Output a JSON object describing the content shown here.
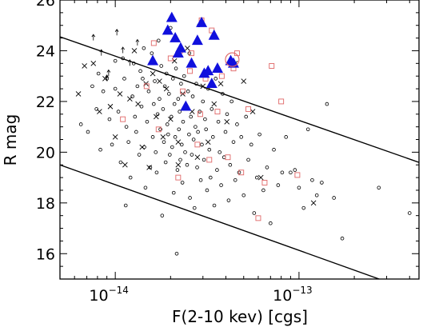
{
  "chart_data": {
    "type": "scatter",
    "title": "",
    "xlabel": "F(2-10 kev) [cgs]",
    "ylabel": "R mag",
    "xscale": "log",
    "xlim": [
      5e-15,
      4.5e-13
    ],
    "ylim": [
      15,
      26
    ],
    "grid": false,
    "legend": "none",
    "x_ticks": [
      {
        "value": 1e-14,
        "base": "10",
        "exponent": "−14"
      },
      {
        "value": 1e-13,
        "base": "10",
        "exponent": "−13"
      }
    ],
    "y_ticks": [
      {
        "value": 16,
        "label": "16"
      },
      {
        "value": 18,
        "label": "18"
      },
      {
        "value": 20,
        "label": "20"
      },
      {
        "value": 22,
        "label": "22"
      },
      {
        "value": 24,
        "label": "24"
      },
      {
        "value": 26,
        "label": "26"
      }
    ],
    "lines": [
      {
        "points": [
          [
            5e-15,
            24.55
          ],
          [
            4.5e-13,
            19.6
          ]
        ]
      },
      {
        "points": [
          [
            5e-15,
            19.5
          ],
          [
            2.73e-13,
            15.0
          ]
        ]
      }
    ],
    "series": [
      {
        "marker": "circle",
        "color": "#000000",
        "points": [
          [
            7.1e-15,
            20.8
          ],
          [
            7.5e-15,
            22.6
          ],
          [
            7.9e-15,
            21.7
          ],
          [
            8.1e-15,
            23.1
          ],
          [
            8.6e-15,
            22.4
          ],
          [
            9e-15,
            22.9
          ],
          [
            9.3e-15,
            21.3
          ],
          [
            9.6e-15,
            20.3
          ],
          [
            1e-14,
            23.6
          ],
          [
            1e-14,
            22.5
          ],
          [
            1.04e-14,
            21.6
          ],
          [
            1.07e-14,
            19.6
          ],
          [
            1.1e-14,
            23.7
          ],
          [
            1.12e-14,
            22.9
          ],
          [
            1.15e-14,
            21.0
          ],
          [
            1.18e-14,
            20.4
          ],
          [
            1.21e-14,
            19.0
          ],
          [
            1.24e-14,
            22.2
          ],
          [
            1.26e-14,
            23.5
          ],
          [
            1.28e-14,
            21.4
          ],
          [
            1.3e-14,
            20.8
          ],
          [
            1.32e-14,
            22.6
          ],
          [
            1.35e-14,
            19.9
          ],
          [
            1.37e-14,
            23.2
          ],
          [
            1.39e-14,
            21.8
          ],
          [
            1.41e-14,
            22.9
          ],
          [
            1.44e-14,
            20.2
          ],
          [
            1.46e-14,
            18.6
          ],
          [
            1.49e-14,
            21.2
          ],
          [
            1.52e-14,
            22.4
          ],
          [
            1.55e-14,
            19.4
          ],
          [
            1.58e-14,
            23.9
          ],
          [
            1.6e-14,
            20.6
          ],
          [
            1.62e-14,
            21.9
          ],
          [
            1.64e-14,
            22.8
          ],
          [
            1.66e-14,
            20.0
          ],
          [
            1.68e-14,
            19.2
          ],
          [
            1.7e-14,
            21.5
          ],
          [
            1.72e-14,
            24.4
          ],
          [
            1.74e-14,
            22.1
          ],
          [
            1.76e-14,
            20.9
          ],
          [
            1.78e-14,
            23.4
          ],
          [
            1.8e-14,
            17.5
          ],
          [
            1.82e-14,
            21.7
          ],
          [
            1.84e-14,
            20.4
          ],
          [
            1.86e-14,
            22.6
          ],
          [
            1.88e-14,
            19.6
          ],
          [
            1.9e-14,
            23.1
          ],
          [
            1.92e-14,
            21.1
          ],
          [
            1.94e-14,
            20.7
          ],
          [
            1.96e-14,
            22.3
          ],
          [
            1.98e-14,
            19.9
          ],
          [
            2e-14,
            24.9
          ],
          [
            2.02e-14,
            21.4
          ],
          [
            2.04e-14,
            20.2
          ],
          [
            2.06e-14,
            22.9
          ],
          [
            2.08e-14,
            18.4
          ],
          [
            2.1e-14,
            21.9
          ],
          [
            2.12e-14,
            20.6
          ],
          [
            2.14e-14,
            23.3
          ],
          [
            2.16e-14,
            16.0
          ],
          [
            2.18e-14,
            19.3
          ],
          [
            2.2e-14,
            22.1
          ],
          [
            2.22e-14,
            20.9
          ],
          [
            2.24e-14,
            21.6
          ],
          [
            2.26e-14,
            19.7
          ],
          [
            2.28e-14,
            22.7
          ],
          [
            2.3e-14,
            20.3
          ],
          [
            2.32e-14,
            18.8
          ],
          [
            2.34e-14,
            21.2
          ],
          [
            2.37e-14,
            23.0
          ],
          [
            2.4e-14,
            20.0
          ],
          [
            2.43e-14,
            21.8
          ],
          [
            2.46e-14,
            19.5
          ],
          [
            2.49e-14,
            22.4
          ],
          [
            2.52e-14,
            20.7
          ],
          [
            2.55e-14,
            18.2
          ],
          [
            2.58e-14,
            21.4
          ],
          [
            2.61e-14,
            19.9
          ],
          [
            2.64e-14,
            22.2
          ],
          [
            2.67e-14,
            20.5
          ],
          [
            2.7e-14,
            17.8
          ],
          [
            2.73e-14,
            21.0
          ],
          [
            2.76e-14,
            22.7
          ],
          [
            2.79e-14,
            19.4
          ],
          [
            2.82e-14,
            20.8
          ],
          [
            2.85e-14,
            25.0
          ],
          [
            2.88e-14,
            21.6
          ],
          [
            2.92e-14,
            18.9
          ],
          [
            2.96e-14,
            20.3
          ],
          [
            3e-14,
            22.0
          ],
          [
            3.04e-14,
            19.7
          ],
          [
            3.08e-14,
            21.3
          ],
          [
            3.12e-14,
            20.9
          ],
          [
            3.16e-14,
            18.5
          ],
          [
            3.2e-14,
            22.5
          ],
          [
            3.25e-14,
            20.1
          ],
          [
            3.3e-14,
            19.0
          ],
          [
            3.35e-14,
            21.7
          ],
          [
            3.4e-14,
            20.6
          ],
          [
            3.46e-14,
            17.9
          ],
          [
            3.52e-14,
            22.9
          ],
          [
            3.58e-14,
            19.3
          ],
          [
            3.64e-14,
            21.2
          ],
          [
            3.7e-14,
            20.0
          ],
          [
            3.77e-14,
            18.7
          ],
          [
            3.84e-14,
            22.3
          ],
          [
            3.91e-14,
            19.8
          ],
          [
            3.98e-14,
            20.8
          ],
          [
            4.06e-14,
            21.5
          ],
          [
            4.14e-14,
            18.1
          ],
          [
            4.22e-14,
            19.5
          ],
          [
            4.3e-14,
            22.0
          ],
          [
            4.4e-14,
            20.4
          ],
          [
            4.5e-14,
            18.9
          ],
          [
            4.6e-14,
            21.1
          ],
          [
            4.72e-14,
            19.2
          ],
          [
            4.85e-14,
            20.6
          ],
          [
            5e-14,
            18.3
          ],
          [
            5.15e-14,
            21.4
          ],
          [
            5.3e-14,
            19.7
          ],
          [
            5.5e-14,
            20.3
          ],
          [
            5.7e-14,
            17.6
          ],
          [
            5.9e-14,
            19.0
          ],
          [
            6.1e-14,
            20.7
          ],
          [
            6.4e-14,
            18.5
          ],
          [
            6.7e-14,
            19.4
          ],
          [
            7e-14,
            17.2
          ],
          [
            7.3e-14,
            20.1
          ],
          [
            7.7e-14,
            18.7
          ],
          [
            8.1e-14,
            19.2
          ],
          [
            8.5e-14,
            20.6
          ],
          [
            9e-14,
            19.2
          ],
          [
            9.5e-14,
            19.3
          ],
          [
            1e-13,
            18.6
          ],
          [
            1.06e-13,
            17.8
          ],
          [
            1.12e-13,
            20.9
          ],
          [
            1.18e-13,
            18.9
          ],
          [
            1.25e-13,
            18.3
          ],
          [
            1.33e-13,
            18.8
          ],
          [
            1.42e-13,
            21.9
          ],
          [
            1.55e-13,
            18.2
          ],
          [
            1.72e-13,
            16.6
          ],
          [
            2.72e-13,
            18.6
          ],
          [
            4e-13,
            17.6
          ],
          [
            6.5e-15,
            21.1
          ],
          [
            8.3e-15,
            20.1
          ],
          [
            1.14e-14,
            17.9
          ],
          [
            1.43e-14,
            24.1
          ],
          [
            2.53e-14,
            23.9
          ]
        ]
      },
      {
        "marker": "cross",
        "color": "#000000",
        "points": [
          [
            6.3e-15,
            22.3
          ],
          [
            6.8e-15,
            23.4
          ],
          [
            7.6e-15,
            23.5
          ],
          [
            8.2e-15,
            21.6
          ],
          [
            8.8e-15,
            22.9
          ],
          [
            9.4e-15,
            21.8
          ],
          [
            1e-14,
            20.6
          ],
          [
            1.06e-14,
            22.3
          ],
          [
            1.13e-14,
            19.5
          ],
          [
            1.2e-14,
            22.1
          ],
          [
            1.27e-14,
            24.0
          ],
          [
            1.33e-14,
            21.9
          ],
          [
            1.4e-14,
            20.2
          ],
          [
            1.47e-14,
            22.7
          ],
          [
            1.53e-14,
            19.4
          ],
          [
            1.6e-14,
            23.1
          ],
          [
            1.67e-14,
            21.4
          ],
          [
            1.74e-14,
            22.8
          ],
          [
            1.82e-14,
            20.6
          ],
          [
            1.9e-14,
            22.5
          ],
          [
            2e-14,
            21.3
          ],
          [
            2.1e-14,
            23.6
          ],
          [
            2.2e-14,
            20.4
          ],
          [
            2.33e-14,
            22.3
          ],
          [
            2.47e-14,
            24.1
          ],
          [
            2.62e-14,
            21.6
          ],
          [
            2.8e-14,
            19.8
          ],
          [
            3e-14,
            22.6
          ],
          [
            3.2e-14,
            20.4
          ],
          [
            3.45e-14,
            21.9
          ],
          [
            3.75e-14,
            22.7
          ],
          [
            4.05e-14,
            21.2
          ],
          [
            4.5e-14,
            23.5
          ],
          [
            5e-14,
            22.8
          ],
          [
            5.6e-14,
            21.6
          ],
          [
            6.2e-14,
            19.0
          ],
          [
            1.2e-13,
            18.0
          ],
          [
            2.2e-14,
            19.5
          ]
        ]
      },
      {
        "marker": "square",
        "color": "#e06666",
        "points": [
          [
            1.1e-14,
            21.3
          ],
          [
            1.48e-14,
            22.6
          ],
          [
            1.72e-14,
            20.9
          ],
          [
            2e-14,
            23.7
          ],
          [
            2.2e-14,
            19.0
          ],
          [
            2.33e-14,
            22.4
          ],
          [
            2.6e-14,
            23.9
          ],
          [
            2.8e-14,
            20.3
          ],
          [
            2.95e-14,
            25.2
          ],
          [
            3.1e-14,
            22.9
          ],
          [
            3.35e-14,
            24.8
          ],
          [
            3.6e-14,
            21.6
          ],
          [
            3.8e-14,
            23.0
          ],
          [
            4.1e-14,
            19.8
          ],
          [
            4.4e-14,
            23.3
          ],
          [
            4.6e-14,
            23.9
          ],
          [
            5.3e-14,
            21.7
          ],
          [
            6e-14,
            17.4
          ],
          [
            7.1e-14,
            23.4
          ],
          [
            8e-14,
            22.0
          ],
          [
            6.5e-14,
            18.8
          ],
          [
            9.8e-14,
            19.1
          ],
          [
            1.62e-14,
            24.3
          ],
          [
            2.55e-14,
            23.2
          ],
          [
            3.25e-14,
            19.7
          ],
          [
            2.25e-14,
            24.0
          ],
          [
            2.9e-14,
            21.5
          ],
          [
            4.85e-14,
            19.2
          ]
        ]
      },
      {
        "marker": "triangle-filled",
        "color": "#1010dd",
        "points": [
          [
            1.6e-14,
            23.6
          ],
          [
            1.93e-14,
            24.8
          ],
          [
            2.03e-14,
            25.3
          ],
          [
            2.12e-14,
            24.5
          ],
          [
            2.2e-14,
            23.9
          ],
          [
            2.27e-14,
            24.1
          ],
          [
            2.42e-14,
            21.8
          ],
          [
            2.6e-14,
            23.5
          ],
          [
            2.8e-14,
            24.4
          ],
          [
            2.95e-14,
            25.1
          ],
          [
            3.05e-14,
            23.1
          ],
          [
            3.2e-14,
            23.2
          ],
          [
            3.35e-14,
            22.7
          ],
          [
            3.45e-14,
            24.6
          ],
          [
            3.6e-14,
            23.3
          ],
          [
            4.25e-14,
            23.6
          ],
          [
            4.4e-14,
            23.5
          ]
        ]
      }
    ],
    "highlight_rings": [
      [
        4.33e-14,
        23.65
      ]
    ],
    "upper_limits": [
      [
        7.6e-15,
        24.5
      ],
      [
        8.4e-15,
        23.9
      ],
      [
        9.2e-15,
        23.1
      ],
      [
        1.02e-14,
        24.7
      ],
      [
        1.1e-14,
        24.0
      ],
      [
        1.2e-14,
        23.5
      ],
      [
        9e-15,
        22.9
      ],
      [
        1.32e-14,
        24.3
      ]
    ]
  }
}
